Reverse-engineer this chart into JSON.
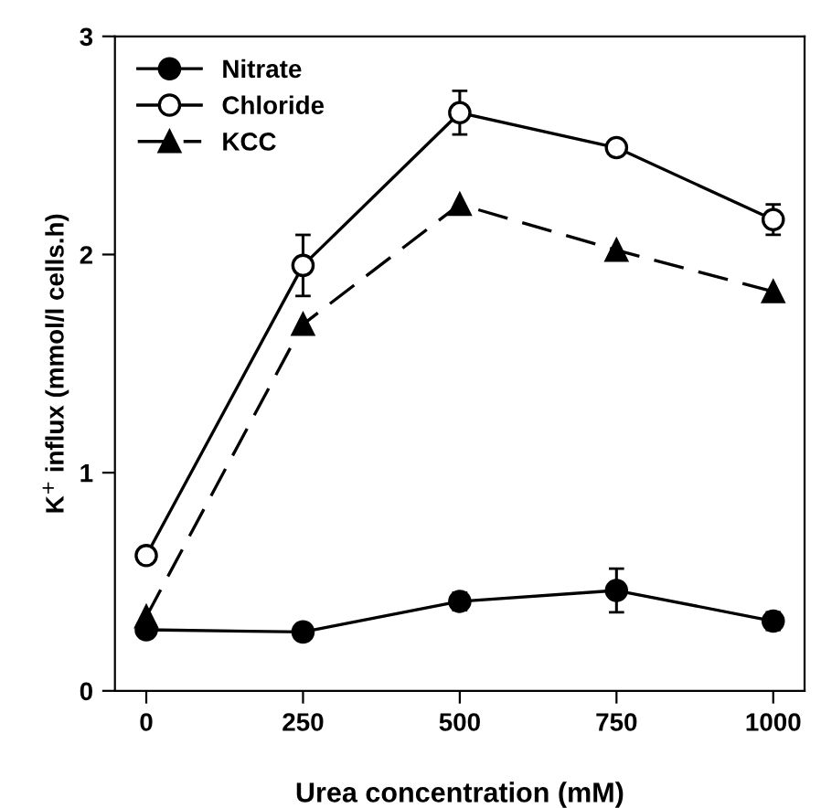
{
  "chart_data": {
    "type": "line",
    "xlabel": "Urea concentration (mM)",
    "ylabel": "K$^{+}$ influx (mmol/l cells.h)",
    "x": [
      0,
      250,
      500,
      750,
      1000
    ],
    "xlim": [
      -50,
      1050
    ],
    "xticks": [
      0,
      250,
      500,
      750,
      1000
    ],
    "ylim": [
      0,
      3
    ],
    "yticks": [
      0,
      1,
      2,
      3
    ],
    "grid": false,
    "legend": "top left",
    "series": [
      {
        "name": "Nitrate",
        "color": "#000000",
        "values": [
          0.28,
          0.27,
          0.41,
          0.46,
          0.32
        ],
        "errors": [
          0.03,
          0.02,
          0.04,
          0.1,
          0.04
        ],
        "marker": "circle",
        "line_style": "solid"
      },
      {
        "name": "Chloride",
        "color": "#000000",
        "values": [
          0.62,
          1.95,
          2.65,
          2.49,
          2.16
        ],
        "errors": [
          null,
          0.14,
          0.1,
          0.02,
          0.07
        ],
        "marker": "circle",
        "line_style": "solid"
      },
      {
        "name": "KCC",
        "color": "#000000",
        "values": [
          0.34,
          1.68,
          2.23,
          2.02,
          1.83
        ],
        "marker": "triangle",
        "line_style": "dashed"
      }
    ]
  }
}
